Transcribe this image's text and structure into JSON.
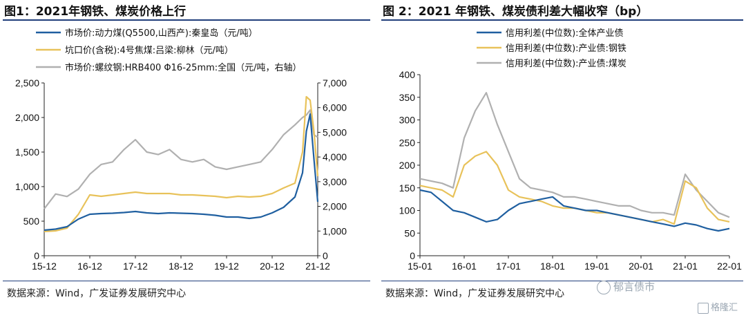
{
  "left": {
    "title": "图1：2021年钢铁、煤炭价格上行",
    "source": "数据来源：Wind，广发证券发展研究中心",
    "chart_data": {
      "type": "line",
      "x_ticks": [
        "15-12",
        "16-12",
        "17-12",
        "18-12",
        "19-12",
        "20-12",
        "21-12"
      ],
      "y_left": {
        "lim": [
          0,
          2500
        ],
        "ticks": [
          "0",
          "500",
          "1,000",
          "1,500",
          "2,000",
          "2,500"
        ]
      },
      "y_right": {
        "lim": [
          0,
          7000
        ],
        "ticks": [
          "0",
          "1,000",
          "2,000",
          "3,000",
          "4,000",
          "5,000",
          "6,000",
          "7,000"
        ]
      },
      "legend_position": "top-left",
      "series": [
        {
          "name": "市场价:动力煤(Q5500,山西产):秦皇岛（元/吨）",
          "color": "#1f5fa0",
          "axis": "left",
          "x": [
            "15-12",
            "16-03",
            "16-06",
            "16-09",
            "16-12",
            "17-03",
            "17-06",
            "17-09",
            "17-12",
            "18-03",
            "18-06",
            "18-09",
            "18-12",
            "19-03",
            "19-06",
            "19-09",
            "19-12",
            "20-03",
            "20-06",
            "20-09",
            "20-12",
            "21-03",
            "21-06",
            "21-08",
            "21-09",
            "21-10",
            "21-11",
            "21-12"
          ],
          "values": [
            370,
            385,
            420,
            530,
            600,
            610,
            615,
            625,
            640,
            620,
            610,
            620,
            615,
            610,
            600,
            585,
            560,
            560,
            540,
            560,
            620,
            700,
            850,
            1200,
            1800,
            2050,
            1400,
            780
          ]
        },
        {
          "name": "坑口价(含税):4号焦煤:吕梁:柳林（元/吨）",
          "color": "#e8c25a",
          "axis": "left",
          "x": [
            "15-12",
            "16-03",
            "16-06",
            "16-09",
            "16-12",
            "17-03",
            "17-06",
            "17-09",
            "17-12",
            "18-03",
            "18-06",
            "18-09",
            "18-12",
            "19-03",
            "19-06",
            "19-09",
            "19-12",
            "20-03",
            "20-06",
            "20-09",
            "20-12",
            "21-03",
            "21-06",
            "21-08",
            "21-09",
            "21-10",
            "21-11",
            "21-12"
          ],
          "values": [
            350,
            360,
            400,
            600,
            880,
            860,
            880,
            900,
            920,
            900,
            900,
            900,
            880,
            880,
            870,
            860,
            840,
            860,
            850,
            860,
            900,
            980,
            1050,
            1500,
            2300,
            2250,
            1800,
            1150
          ]
        },
        {
          "name": "市场价:螺纹钢:HRB400 Φ16-25mm:全国（元/吨，右轴）",
          "color": "#b0b0b0",
          "axis": "right",
          "x": [
            "15-12",
            "16-03",
            "16-06",
            "16-09",
            "16-12",
            "17-03",
            "17-06",
            "17-09",
            "17-12",
            "18-03",
            "18-06",
            "18-09",
            "18-12",
            "19-03",
            "19-06",
            "19-09",
            "19-12",
            "20-03",
            "20-06",
            "20-09",
            "20-12",
            "21-03",
            "21-06",
            "21-08",
            "21-09",
            "21-10",
            "21-11",
            "21-12"
          ],
          "values": [
            1900,
            2500,
            2400,
            2700,
            3300,
            3700,
            3800,
            4300,
            4700,
            4200,
            4100,
            4300,
            3900,
            3800,
            3900,
            3600,
            3500,
            3600,
            3700,
            3800,
            4300,
            4900,
            5300,
            5600,
            5700,
            5900,
            4900,
            4800
          ]
        }
      ]
    }
  },
  "right": {
    "title": "图 2：2021 年钢铁、煤炭债利差大幅收窄（bp）",
    "source": "数据来源：Wind，广发证券发展研究中心",
    "chart_data": {
      "type": "line",
      "x_ticks": [
        "15-01",
        "16-01",
        "17-01",
        "18-01",
        "19-01",
        "20-01",
        "21-01",
        "22-01"
      ],
      "y": {
        "lim": [
          0,
          400
        ],
        "ticks": [
          "0",
          "50",
          "100",
          "150",
          "200",
          "250",
          "300",
          "350",
          "400"
        ]
      },
      "legend_position": "top-center",
      "series": [
        {
          "name": "信用利差(中位数):全体产业债",
          "color": "#1f5fa0",
          "x": [
            "15-01",
            "15-04",
            "15-07",
            "15-10",
            "16-01",
            "16-04",
            "16-07",
            "16-10",
            "17-01",
            "17-04",
            "17-07",
            "17-10",
            "18-01",
            "18-04",
            "18-07",
            "18-10",
            "19-01",
            "19-04",
            "19-07",
            "19-10",
            "20-01",
            "20-04",
            "20-07",
            "20-10",
            "21-01",
            "21-04",
            "21-07",
            "21-10",
            "22-01"
          ],
          "values": [
            145,
            140,
            120,
            100,
            95,
            85,
            75,
            80,
            100,
            115,
            120,
            125,
            130,
            110,
            105,
            100,
            100,
            95,
            90,
            85,
            80,
            75,
            70,
            65,
            72,
            68,
            60,
            55,
            60
          ]
        },
        {
          "name": "信用利差(中位数):产业债:钢铁",
          "color": "#e8c25a",
          "x": [
            "15-01",
            "15-04",
            "15-07",
            "15-10",
            "16-01",
            "16-04",
            "16-07",
            "16-10",
            "17-01",
            "17-04",
            "17-07",
            "17-10",
            "18-01",
            "18-04",
            "18-07",
            "18-10",
            "19-01",
            "19-04",
            "19-07",
            "19-10",
            "20-01",
            "20-04",
            "20-07",
            "20-10",
            "21-01",
            "21-04",
            "21-07",
            "21-10",
            "22-01"
          ],
          "values": [
            155,
            150,
            145,
            130,
            200,
            220,
            230,
            200,
            145,
            130,
            125,
            120,
            110,
            105,
            105,
            100,
            95,
            95,
            90,
            85,
            80,
            75,
            80,
            70,
            165,
            150,
            105,
            80,
            75
          ]
        },
        {
          "name": "信用利差(中位数):产业债:煤炭",
          "color": "#b0b0b0",
          "x": [
            "15-01",
            "15-04",
            "15-07",
            "15-10",
            "16-01",
            "16-04",
            "16-07",
            "16-10",
            "17-01",
            "17-04",
            "17-07",
            "17-10",
            "18-01",
            "18-04",
            "18-07",
            "18-10",
            "19-01",
            "19-04",
            "19-07",
            "19-10",
            "20-01",
            "20-04",
            "20-07",
            "20-10",
            "21-01",
            "21-04",
            "21-07",
            "21-10",
            "22-01"
          ],
          "values": [
            170,
            165,
            160,
            150,
            260,
            320,
            360,
            290,
            230,
            170,
            150,
            145,
            140,
            130,
            130,
            125,
            120,
            115,
            110,
            110,
            100,
            95,
            95,
            90,
            180,
            145,
            120,
            95,
            85
          ]
        }
      ]
    }
  },
  "watermark": {
    "text": "郁言债市",
    "corner_text": "格隆汇"
  }
}
